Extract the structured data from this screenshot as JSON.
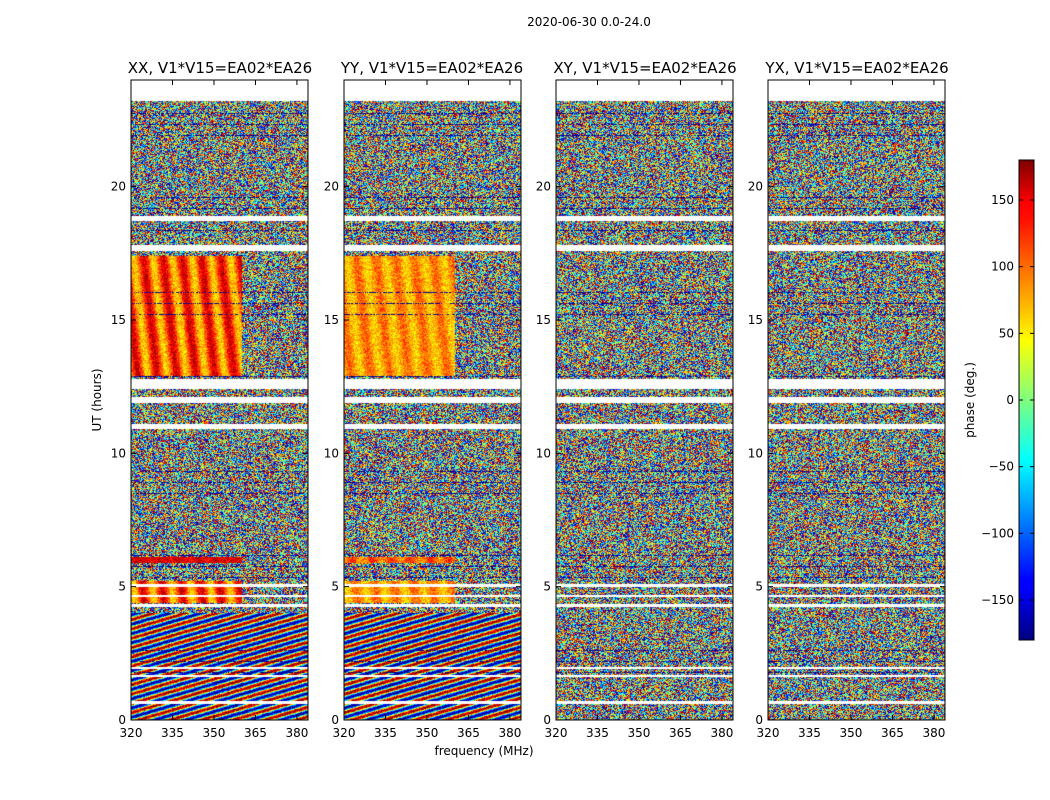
{
  "suptitle": "2020-06-30 0.0-24.0",
  "chart_data": [
    {
      "type": "heatmap",
      "title": "XX, V1*V15=EA02*EA26",
      "xlabel": "frequency (MHz)",
      "ylabel": "UT (hours)",
      "xlim": [
        320,
        384
      ],
      "ylim": [
        0,
        24
      ],
      "xticks": [
        "320",
        "335",
        "350",
        "365",
        "380"
      ],
      "yticks": [
        "0",
        "5",
        "10",
        "15",
        "20"
      ],
      "colorbar_label": "phase (deg.)",
      "clim": [
        -180,
        180
      ],
      "coherent_regions": [
        {
          "ut": [
            12.9,
            17.4
          ],
          "freq": [
            320,
            360
          ],
          "phase_deg": [
            60,
            150
          ]
        },
        {
          "ut": [
            5.9,
            6.1
          ],
          "freq": [
            320,
            360
          ],
          "phase_deg": [
            140,
            150
          ]
        },
        {
          "ut": [
            4.4,
            5.2
          ],
          "freq": [
            320,
            360
          ],
          "phase_deg": [
            60,
            150
          ]
        }
      ]
    },
    {
      "type": "heatmap",
      "title": "YY, V1*V15=EA02*EA26",
      "xlabel": "frequency (MHz)",
      "ylabel": "",
      "xlim": [
        320,
        384
      ],
      "ylim": [
        0,
        24
      ],
      "xticks": [
        "320",
        "335",
        "350",
        "365",
        "380"
      ],
      "yticks": [
        "0",
        "5",
        "10",
        "15",
        "20"
      ],
      "colorbar_label": "phase (deg.)",
      "clim": [
        -180,
        180
      ],
      "coherent_regions": [
        {
          "ut": [
            12.9,
            17.4
          ],
          "freq": [
            320,
            360
          ],
          "phase_deg": [
            60,
            100
          ]
        },
        {
          "ut": [
            5.9,
            6.1
          ],
          "freq": [
            320,
            360
          ],
          "phase_deg": [
            80,
            120
          ]
        },
        {
          "ut": [
            4.4,
            5.2
          ],
          "freq": [
            320,
            360
          ],
          "phase_deg": [
            60,
            100
          ]
        }
      ]
    },
    {
      "type": "heatmap",
      "title": "XY, V1*V15=EA02*EA26",
      "xlabel": "",
      "ylabel": "",
      "xlim": [
        320,
        384
      ],
      "ylim": [
        0,
        24
      ],
      "xticks": [
        "320",
        "335",
        "350",
        "365",
        "380"
      ],
      "yticks": [
        "0",
        "5",
        "10",
        "15",
        "20"
      ],
      "colorbar_label": "phase (deg.)",
      "clim": [
        -180,
        180
      ],
      "coherent_regions": []
    },
    {
      "type": "heatmap",
      "title": "YX, V1*V15=EA02*EA26",
      "xlabel": "",
      "ylabel": "",
      "xlim": [
        320,
        384
      ],
      "ylim": [
        0,
        24
      ],
      "xticks": [
        "320",
        "335",
        "350",
        "365",
        "380"
      ],
      "yticks": [
        "0",
        "5",
        "10",
        "15",
        "20"
      ],
      "colorbar_label": "phase (deg.)",
      "clim": [
        -180,
        180
      ],
      "coherent_regions": []
    }
  ],
  "colorbar": {
    "label": "phase (deg.)",
    "range": [
      -180,
      180
    ],
    "ticks": [
      "150",
      "100",
      "50",
      "0",
      "−50",
      "−100",
      "−150"
    ],
    "tick_values": [
      150,
      100,
      50,
      0,
      -50,
      -100,
      -150
    ],
    "colormap": "jet"
  },
  "flagged_ut_ranges": [
    [
      23.2,
      24.0
    ],
    [
      18.7,
      18.9
    ],
    [
      17.6,
      17.8
    ],
    [
      12.4,
      12.8
    ],
    [
      11.9,
      12.1
    ],
    [
      10.9,
      11.1
    ],
    [
      5.0,
      5.1
    ],
    [
      4.6,
      4.7
    ],
    [
      4.25,
      4.35
    ],
    [
      1.9,
      2.0
    ],
    [
      1.6,
      1.7
    ],
    [
      0.6,
      0.7
    ]
  ]
}
